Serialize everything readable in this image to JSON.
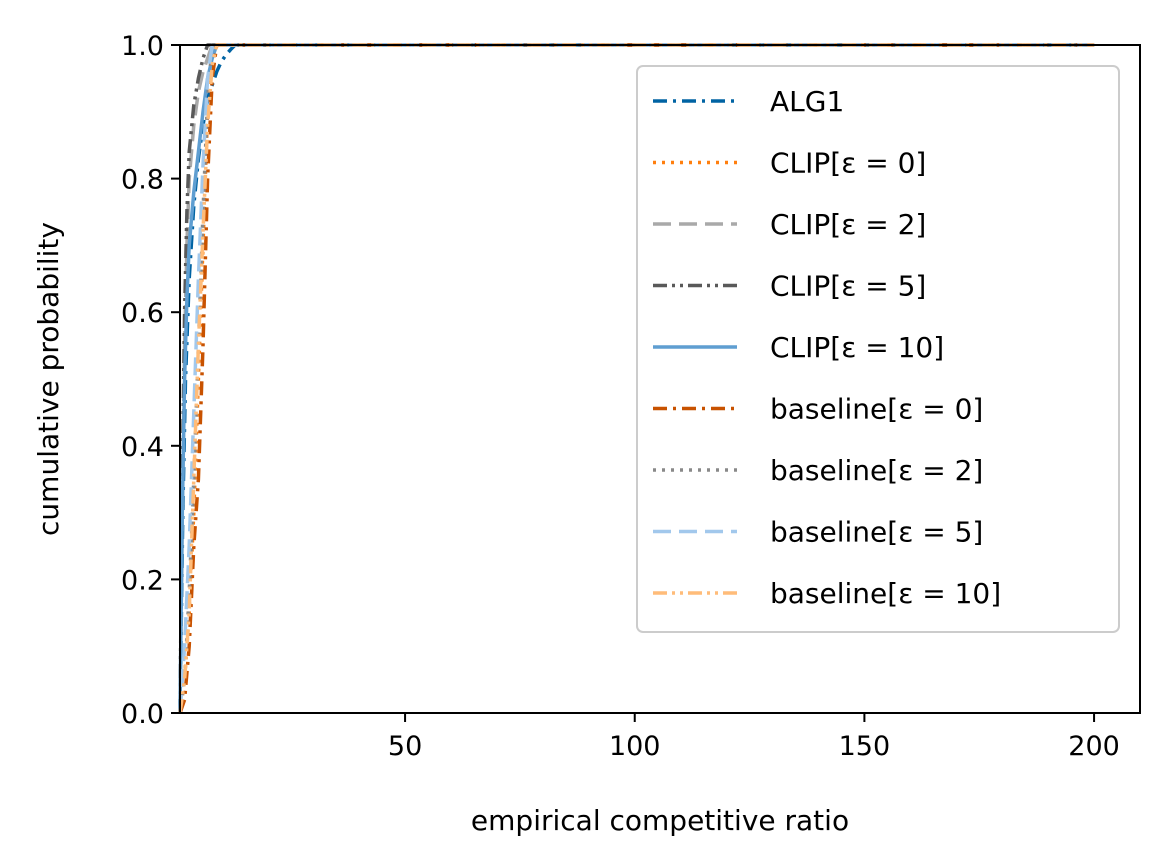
{
  "chart_data": {
    "type": "line",
    "xlabel": "empirical competitive ratio",
    "ylabel": "cumulative probability",
    "xlim": [
      1,
      210
    ],
    "ylim": [
      0,
      1
    ],
    "x_ticks": [
      50,
      100,
      150,
      200
    ],
    "y_ticks": [
      0.0,
      0.2,
      0.4,
      0.6,
      0.8,
      1.0
    ],
    "x_tick_labels": [
      "50",
      "100",
      "150",
      "200"
    ],
    "y_tick_labels": [
      "0.0",
      "0.2",
      "0.4",
      "0.6",
      "0.8",
      "1.0"
    ],
    "grid": false,
    "legend_position": "top-right",
    "series": [
      {
        "name": "ALG1",
        "color": "#0063a3",
        "dash": "dashdot",
        "x": [
          1,
          1.6,
          2.2,
          3,
          4,
          5,
          6,
          7,
          8,
          9,
          10,
          11,
          12,
          13,
          200
        ],
        "y": [
          0,
          0.3,
          0.5,
          0.65,
          0.76,
          0.83,
          0.88,
          0.92,
          0.94,
          0.96,
          0.975,
          0.985,
          0.993,
          1.0,
          1.0
        ]
      },
      {
        "name": "CLIP[ε = 0]",
        "color": "#ff7f0e",
        "dash": "dotted",
        "x": [
          1,
          2,
          3,
          4,
          5,
          6,
          6.5,
          7,
          8,
          9,
          200
        ],
        "y": [
          0,
          0.05,
          0.15,
          0.3,
          0.5,
          0.7,
          0.8,
          0.9,
          0.97,
          1.0,
          1.0
        ]
      },
      {
        "name": "CLIP[ε = 2]",
        "color": "#a9a9a9",
        "dash": "dashed",
        "x": [
          1,
          1.5,
          2,
          2.5,
          3,
          4,
          5,
          6,
          7,
          8,
          200
        ],
        "y": [
          0,
          0.3,
          0.55,
          0.7,
          0.8,
          0.88,
          0.93,
          0.96,
          0.98,
          1.0,
          1.0
        ]
      },
      {
        "name": "CLIP[ε = 5]",
        "color": "#595959",
        "dash": "dashdotdot",
        "x": [
          1,
          1.5,
          2,
          2.5,
          3,
          4,
          5,
          6,
          7,
          200
        ],
        "y": [
          0,
          0.35,
          0.6,
          0.75,
          0.84,
          0.91,
          0.95,
          0.98,
          1.0,
          1.0
        ]
      },
      {
        "name": "CLIP[ε = 10]",
        "color": "#5f9ed1",
        "dash": "solid",
        "x": [
          1,
          1.5,
          2,
          2.5,
          3,
          4,
          5,
          6,
          7,
          8,
          9,
          200
        ],
        "y": [
          0,
          0.3,
          0.5,
          0.62,
          0.7,
          0.78,
          0.84,
          0.9,
          0.95,
          0.98,
          1.0,
          1.0
        ]
      },
      {
        "name": "baseline[ε = 0]",
        "color": "#c85200",
        "dash": "dashdot",
        "x": [
          1,
          2,
          3,
          4,
          5,
          6,
          7,
          8,
          9,
          200
        ],
        "y": [
          0,
          0.02,
          0.1,
          0.25,
          0.35,
          0.55,
          0.8,
          0.95,
          1.0,
          1.0
        ]
      },
      {
        "name": "baseline[ε = 2]",
        "color": "#898989",
        "dash": "dotted",
        "x": [
          1,
          2,
          3,
          4,
          5,
          6,
          7,
          8,
          200
        ],
        "y": [
          0,
          0.05,
          0.18,
          0.35,
          0.55,
          0.75,
          0.92,
          1.0,
          1.0
        ]
      },
      {
        "name": "baseline[ε = 5]",
        "color": "#a2c8ec",
        "dash": "dashed",
        "x": [
          1,
          2,
          3,
          4,
          5,
          6,
          7,
          8,
          200
        ],
        "y": [
          0,
          0.1,
          0.25,
          0.45,
          0.65,
          0.82,
          0.95,
          1.0,
          1.0
        ]
      },
      {
        "name": "baseline[ε = 10]",
        "color": "#ffbc79",
        "dash": "dashdotdot",
        "x": [
          1,
          2,
          3,
          4,
          5,
          6,
          7,
          8,
          9,
          200
        ],
        "y": [
          0,
          0.05,
          0.15,
          0.35,
          0.55,
          0.72,
          0.88,
          0.97,
          1.0,
          1.0
        ]
      }
    ]
  }
}
